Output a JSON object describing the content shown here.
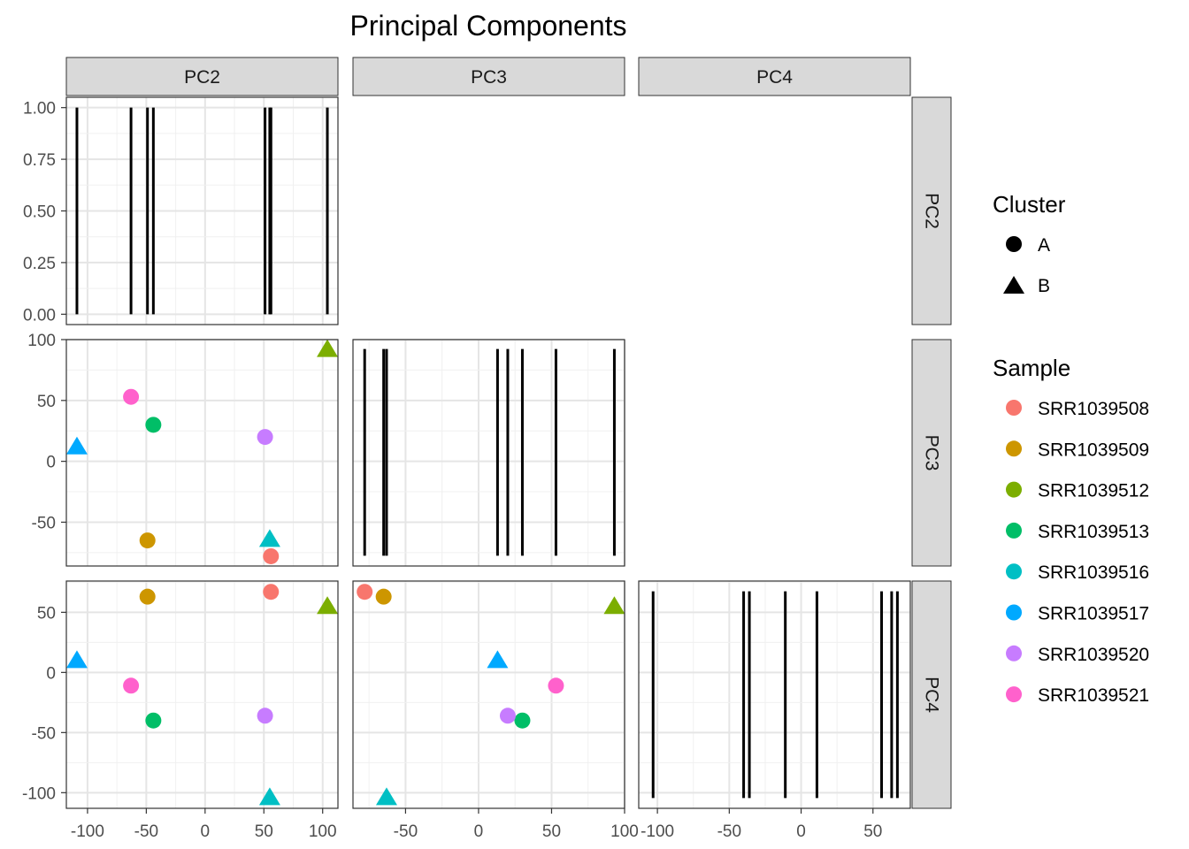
{
  "chart_data": {
    "type": "scatter",
    "title": "Principal Components",
    "variables": [
      "PC2",
      "PC3",
      "PC4"
    ],
    "samples": [
      {
        "name": "SRR1039508",
        "cluster": "A",
        "PC2": 56,
        "PC3": -78,
        "PC4": 67
      },
      {
        "name": "SRR1039509",
        "cluster": "A",
        "PC2": -49,
        "PC3": -65,
        "PC4": 63
      },
      {
        "name": "SRR1039512",
        "cluster": "B",
        "PC2": 104,
        "PC3": 93,
        "PC4": 56
      },
      {
        "name": "SRR1039513",
        "cluster": "A",
        "PC2": -44,
        "PC3": 30,
        "PC4": -40
      },
      {
        "name": "SRR1039516",
        "cluster": "B",
        "PC2": 55,
        "PC3": -63,
        "PC4": -103
      },
      {
        "name": "SRR1039517",
        "cluster": "B",
        "PC2": -109,
        "PC3": 13,
        "PC4": 11
      },
      {
        "name": "SRR1039520",
        "cluster": "A",
        "PC2": 51,
        "PC3": 20,
        "PC4": -36
      },
      {
        "name": "SRR1039521",
        "cluster": "A",
        "PC2": -63,
        "PC3": 53,
        "PC4": -11
      }
    ],
    "colors": {
      "SRR1039508": "#F8766D",
      "SRR1039509": "#CD9600",
      "SRR1039512": "#7CAE00",
      "SRR1039513": "#00BE67",
      "SRR1039516": "#00BFC4",
      "SRR1039517": "#00A9FF",
      "SRR1039520": "#C77CFF",
      "SRR1039521": "#FF61CC"
    },
    "axes": {
      "PC2": {
        "lim": [
          -118,
          113
        ],
        "ticks": [
          -100,
          -50,
          0,
          50,
          100
        ]
      },
      "PC3": {
        "lim": [
          -86,
          100
        ],
        "ticks": [
          -50,
          0,
          50,
          100
        ]
      },
      "PC4": {
        "lim": [
          -113,
          76
        ],
        "ticks": [
          -100,
          -50,
          0,
          50
        ]
      },
      "density": {
        "lim": [
          -0.05,
          1.05
        ],
        "ticks": [
          0.0,
          0.25,
          0.5,
          0.75,
          1.0
        ]
      }
    },
    "tick_labels": {
      "density": [
        "0.00",
        "0.25",
        "0.50",
        "0.75",
        "1.00"
      ],
      "PC2": [
        "-100",
        "-50",
        "0",
        "50",
        "100"
      ],
      "PC3": [
        "-50",
        "0",
        "50",
        "100"
      ],
      "PC4": [
        "-100",
        "-50",
        "0",
        "50"
      ]
    },
    "legend": {
      "position": "right",
      "cluster_title": "Cluster",
      "clusters": [
        {
          "label": "A",
          "shape": "circle"
        },
        {
          "label": "B",
          "shape": "triangle"
        }
      ],
      "sample_title": "Sample"
    },
    "grid": true
  }
}
